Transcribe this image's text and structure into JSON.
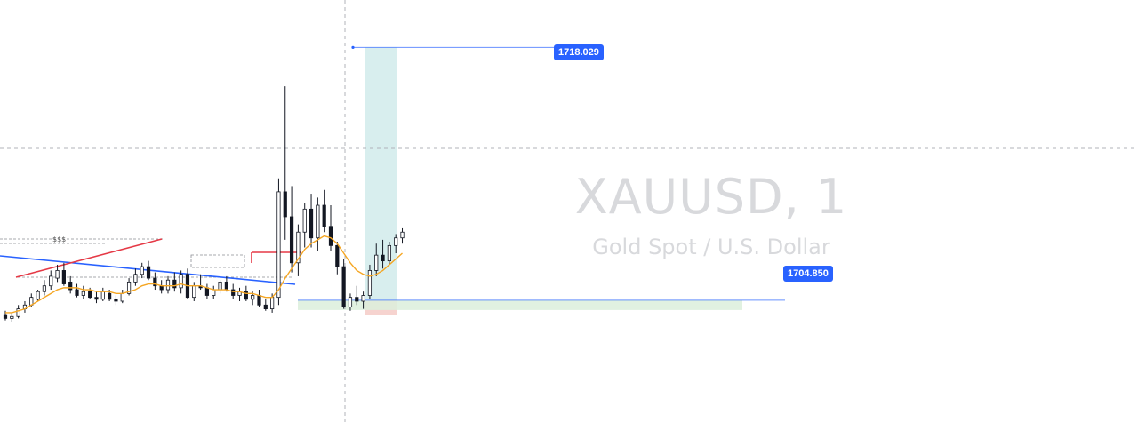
{
  "symbol_title": "XAUUSD, 1",
  "symbol_description": "Gold Spot / U.S. Dollar",
  "liquidity_mark": "$$$",
  "target_price_label": "1718.029",
  "entry_price_label": "1704.850",
  "colors": {
    "candle": "#131722",
    "ema": "#f5a623",
    "blue_trendline": "#2962ff",
    "red_trendline": "#e53946",
    "target_zone": "#d8eeee",
    "stop_zone": "#f6d3cf",
    "green_zone": "#dcefdc",
    "price_label": "#2962ff",
    "crosshair": "#b0b3ba"
  },
  "chart_data": {
    "type": "candlestick",
    "symbol": "XAUUSD",
    "timeframe": "1",
    "ylim": [
      1698.5,
      1720.5
    ],
    "grid": false,
    "candles": [
      [
        1704.1,
        1704.3,
        1703.8,
        1703.9
      ],
      [
        1703.9,
        1704.2,
        1703.7,
        1704.0
      ],
      [
        1704.0,
        1704.6,
        1703.9,
        1704.4
      ],
      [
        1704.4,
        1704.8,
        1704.2,
        1704.6
      ],
      [
        1704.6,
        1705.2,
        1704.5,
        1705.0
      ],
      [
        1704.9,
        1705.4,
        1704.8,
        1705.3
      ],
      [
        1705.3,
        1705.9,
        1705.1,
        1705.6
      ],
      [
        1705.6,
        1706.4,
        1705.4,
        1706.1
      ],
      [
        1706.0,
        1706.7,
        1705.8,
        1706.4
      ],
      [
        1706.4,
        1706.8,
        1705.6,
        1705.7
      ],
      [
        1705.8,
        1706.1,
        1705.2,
        1705.4
      ],
      [
        1705.4,
        1705.7,
        1705.0,
        1705.1
      ],
      [
        1705.1,
        1705.6,
        1704.9,
        1705.3
      ],
      [
        1705.3,
        1705.5,
        1704.9,
        1705.0
      ],
      [
        1705.0,
        1705.3,
        1704.7,
        1704.9
      ],
      [
        1704.9,
        1705.5,
        1704.8,
        1705.3
      ],
      [
        1705.2,
        1705.4,
        1704.8,
        1704.9
      ],
      [
        1704.9,
        1705.1,
        1704.6,
        1704.8
      ],
      [
        1704.8,
        1705.4,
        1704.7,
        1705.2
      ],
      [
        1705.2,
        1706.0,
        1705.1,
        1705.8
      ],
      [
        1705.8,
        1706.5,
        1705.6,
        1706.2
      ],
      [
        1706.2,
        1706.8,
        1706.0,
        1706.6
      ],
      [
        1706.6,
        1706.9,
        1705.9,
        1706.0
      ],
      [
        1706.0,
        1706.3,
        1705.4,
        1705.6
      ],
      [
        1705.6,
        1705.9,
        1705.2,
        1705.4
      ],
      [
        1705.4,
        1706.1,
        1705.2,
        1705.9
      ],
      [
        1705.9,
        1706.3,
        1705.3,
        1705.5
      ],
      [
        1705.5,
        1706.4,
        1705.2,
        1706.2
      ],
      [
        1706.2,
        1706.5,
        1704.9,
        1705.0
      ],
      [
        1705.0,
        1705.8,
        1704.8,
        1705.6
      ],
      [
        1705.6,
        1706.2,
        1705.4,
        1705.5
      ],
      [
        1705.5,
        1705.7,
        1704.9,
        1705.1
      ],
      [
        1705.1,
        1705.6,
        1704.9,
        1705.4
      ],
      [
        1705.4,
        1705.9,
        1705.2,
        1705.8
      ],
      [
        1705.8,
        1706.1,
        1705.3,
        1705.4
      ],
      [
        1705.4,
        1705.7,
        1704.9,
        1705.1
      ],
      [
        1705.1,
        1705.5,
        1704.8,
        1705.3
      ],
      [
        1705.3,
        1705.6,
        1704.8,
        1704.9
      ],
      [
        1704.9,
        1705.3,
        1704.6,
        1705.1
      ],
      [
        1705.1,
        1705.4,
        1704.5,
        1704.6
      ],
      [
        1704.6,
        1704.9,
        1704.3,
        1704.4
      ],
      [
        1704.4,
        1705.2,
        1704.2,
        1705.0
      ],
      [
        1705.0,
        1711.2,
        1704.6,
        1710.5
      ],
      [
        1710.5,
        1716.0,
        1708.0,
        1709.2
      ],
      [
        1709.2,
        1710.8,
        1706.3,
        1706.8
      ],
      [
        1706.8,
        1708.8,
        1706.1,
        1708.4
      ],
      [
        1708.4,
        1709.9,
        1707.6,
        1709.6
      ],
      [
        1709.6,
        1710.4,
        1707.6,
        1708.1
      ],
      [
        1708.1,
        1710.2,
        1707.4,
        1709.8
      ],
      [
        1709.8,
        1710.6,
        1708.4,
        1708.7
      ],
      [
        1708.7,
        1709.8,
        1707.4,
        1707.7
      ],
      [
        1707.7,
        1707.9,
        1706.2,
        1706.6
      ],
      [
        1706.6,
        1707.0,
        1704.4,
        1704.5
      ],
      [
        1704.5,
        1705.2,
        1704.3,
        1705.0
      ],
      [
        1705.0,
        1705.6,
        1704.6,
        1704.8
      ],
      [
        1704.8,
        1705.3,
        1704.4,
        1705.1
      ],
      [
        1705.1,
        1706.7,
        1704.9,
        1706.4
      ],
      [
        1706.4,
        1707.8,
        1706.1,
        1707.2
      ],
      [
        1707.2,
        1708.0,
        1706.5,
        1706.9
      ],
      [
        1706.9,
        1707.9,
        1706.7,
        1707.7
      ],
      [
        1707.7,
        1708.3,
        1707.3,
        1708.1
      ],
      [
        1708.1,
        1708.6,
        1707.8,
        1708.4
      ]
    ],
    "ema": [
      1704.2,
      1704.2,
      1704.3,
      1704.4,
      1704.6,
      1704.8,
      1705.0,
      1705.2,
      1705.4,
      1705.5,
      1705.5,
      1705.5,
      1705.4,
      1705.4,
      1705.3,
      1705.3,
      1705.3,
      1705.2,
      1705.2,
      1705.3,
      1705.4,
      1705.6,
      1705.7,
      1705.7,
      1705.6,
      1705.6,
      1705.6,
      1705.7,
      1705.6,
      1705.6,
      1705.6,
      1705.5,
      1705.4,
      1705.4,
      1705.4,
      1705.3,
      1705.3,
      1705.2,
      1705.2,
      1705.1,
      1705.0,
      1705.0,
      1705.4,
      1706.0,
      1706.5,
      1707.0,
      1707.5,
      1707.8,
      1708.0,
      1708.2,
      1708.1,
      1707.8,
      1707.3,
      1706.8,
      1706.4,
      1706.2,
      1706.1,
      1706.2,
      1706.4,
      1706.7,
      1707.0,
      1707.3
    ],
    "take_profit": 1718.029,
    "entry": 1704.85,
    "stop_loss": 1704.35
  }
}
